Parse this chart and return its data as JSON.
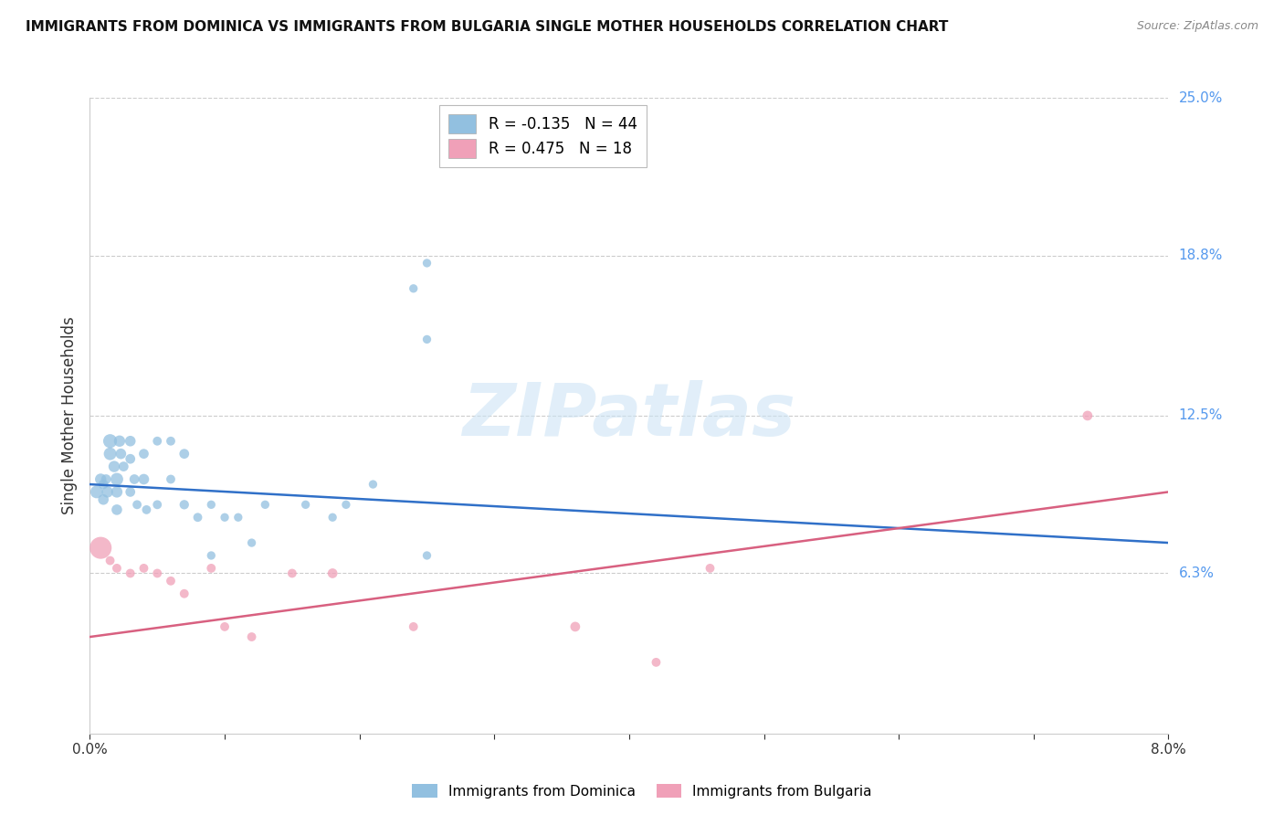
{
  "title": "IMMIGRANTS FROM DOMINICA VS IMMIGRANTS FROM BULGARIA SINGLE MOTHER HOUSEHOLDS CORRELATION CHART",
  "source": "Source: ZipAtlas.com",
  "ylabel": "Single Mother Households",
  "xlim": [
    0.0,
    0.08
  ],
  "ylim": [
    0.0,
    0.25
  ],
  "ytick_labels_right": [
    "25.0%",
    "18.8%",
    "12.5%",
    "6.3%"
  ],
  "ytick_vals_right": [
    0.25,
    0.188,
    0.125,
    0.063
  ],
  "dominica_R": -0.135,
  "dominica_N": 44,
  "bulgaria_R": 0.475,
  "bulgaria_N": 18,
  "dominica_color": "#92c0e0",
  "bulgaria_color": "#f0a0b8",
  "dominica_line_color": "#3070c8",
  "bulgaria_line_color": "#d86080",
  "watermark_text": "ZIPatlas",
  "dominica_line_y0": 0.098,
  "dominica_line_y1": 0.075,
  "bulgaria_line_y0": 0.038,
  "bulgaria_line_y1": 0.095,
  "dominica_x": [
    0.0005,
    0.0008,
    0.001,
    0.001,
    0.0012,
    0.0013,
    0.0015,
    0.0015,
    0.0018,
    0.002,
    0.002,
    0.002,
    0.0022,
    0.0023,
    0.0025,
    0.003,
    0.003,
    0.003,
    0.0033,
    0.0035,
    0.004,
    0.004,
    0.0042,
    0.005,
    0.005,
    0.006,
    0.006,
    0.007,
    0.007,
    0.008,
    0.009,
    0.009,
    0.01,
    0.011,
    0.012,
    0.013,
    0.016,
    0.018,
    0.019,
    0.021,
    0.025,
    0.024,
    0.025,
    0.025
  ],
  "dominica_y": [
    0.095,
    0.1,
    0.098,
    0.092,
    0.1,
    0.095,
    0.115,
    0.11,
    0.105,
    0.1,
    0.095,
    0.088,
    0.115,
    0.11,
    0.105,
    0.115,
    0.108,
    0.095,
    0.1,
    0.09,
    0.11,
    0.1,
    0.088,
    0.115,
    0.09,
    0.115,
    0.1,
    0.11,
    0.09,
    0.085,
    0.09,
    0.07,
    0.085,
    0.085,
    0.075,
    0.09,
    0.09,
    0.085,
    0.09,
    0.098,
    0.155,
    0.175,
    0.185,
    0.07
  ],
  "dominica_size": [
    100,
    80,
    60,
    70,
    60,
    80,
    120,
    100,
    80,
    100,
    80,
    70,
    80,
    70,
    60,
    70,
    60,
    60,
    60,
    50,
    60,
    70,
    50,
    50,
    50,
    50,
    50,
    60,
    55,
    50,
    45,
    45,
    45,
    45,
    45,
    45,
    45,
    45,
    45,
    45,
    45,
    45,
    45,
    45
  ],
  "bulgaria_x": [
    0.0008,
    0.0015,
    0.002,
    0.003,
    0.004,
    0.005,
    0.006,
    0.007,
    0.009,
    0.01,
    0.012,
    0.015,
    0.018,
    0.024,
    0.036,
    0.042,
    0.046,
    0.074
  ],
  "bulgaria_y": [
    0.073,
    0.068,
    0.065,
    0.063,
    0.065,
    0.063,
    0.06,
    0.055,
    0.065,
    0.042,
    0.038,
    0.063,
    0.063,
    0.042,
    0.042,
    0.028,
    0.065,
    0.125
  ],
  "bulgaria_size": [
    300,
    50,
    50,
    50,
    50,
    50,
    50,
    50,
    50,
    50,
    50,
    50,
    60,
    50,
    60,
    50,
    50,
    60
  ]
}
